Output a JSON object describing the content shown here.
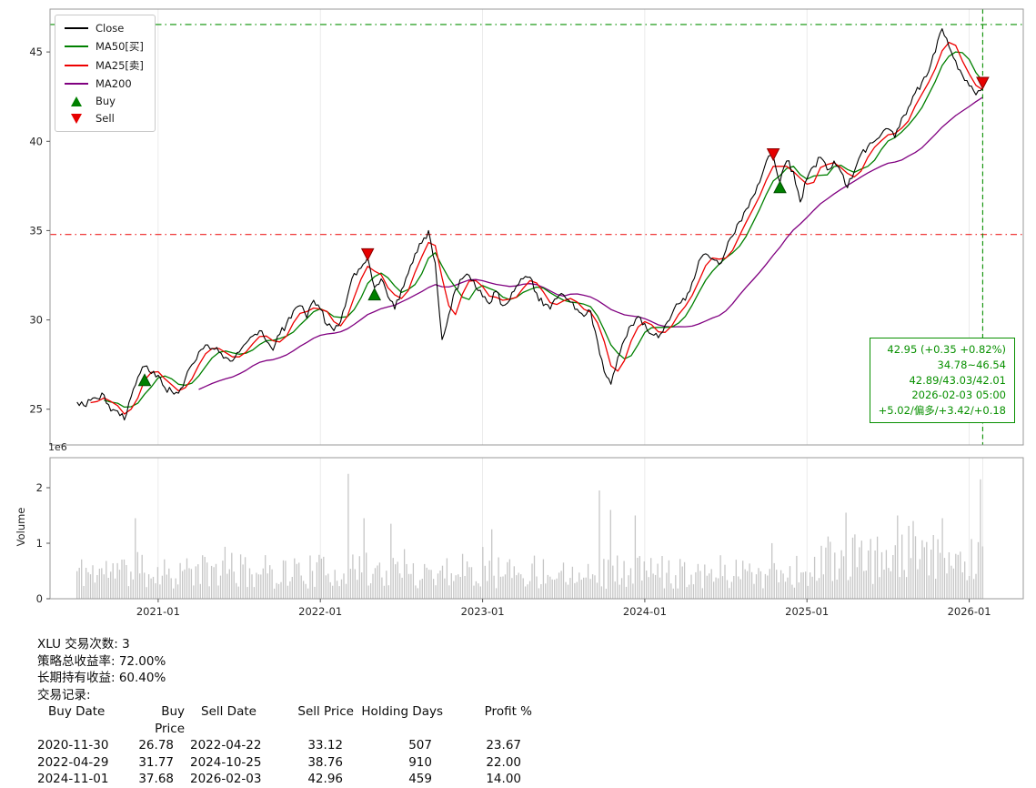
{
  "symbol": "XLU",
  "colors": {
    "close": "#000000",
    "ma25": "#ee0000",
    "ma50": "#008000",
    "ma200": "#800080",
    "buy": "#008000",
    "sell": "#e60000",
    "annotation_green": "#089000",
    "volume_bar": "#c6c6c6"
  },
  "legend": {
    "items": [
      {
        "label": "Close",
        "type": "line",
        "color": "#000000"
      },
      {
        "label": "MA50[买]",
        "type": "line",
        "color": "#008000"
      },
      {
        "label": "MA25[卖]",
        "type": "line",
        "color": "#ee0000"
      },
      {
        "label": "MA200",
        "type": "line",
        "color": "#800080"
      },
      {
        "label": "Buy",
        "type": "marker-up",
        "color": "#008000"
      },
      {
        "label": "Sell",
        "type": "marker-down",
        "color": "#e60000"
      }
    ]
  },
  "chart_data": {
    "type": "line",
    "x_axis_type": "date",
    "x_start": "2020-07",
    "x_step_months": 0.5,
    "x_ticks": [
      {
        "i": 12,
        "label": "2021-01"
      },
      {
        "i": 36,
        "label": "2022-01"
      },
      {
        "i": 60,
        "label": "2023-01"
      },
      {
        "i": 84,
        "label": "2024-01"
      },
      {
        "i": 108,
        "label": "2025-01"
      },
      {
        "i": 132,
        "label": "2026-01"
      }
    ],
    "price": {
      "ylim": [
        23.0,
        47.4
      ],
      "yticks": [
        25,
        30,
        35,
        40,
        45
      ],
      "close": [
        25.4,
        25.2,
        25.5,
        25.6,
        25.8,
        24.9,
        24.9,
        24.4,
        25.7,
        26.8,
        27.4,
        27.0,
        26.9,
        26.2,
        26.0,
        25.9,
        26.7,
        27.5,
        28.2,
        28.6,
        28.4,
        28.2,
        27.9,
        27.7,
        28.2,
        28.7,
        29.1,
        29.4,
        28.8,
        28.3,
        29.2,
        29.8,
        30.5,
        30.8,
        30.1,
        31.1,
        30.6,
        29.7,
        29.4,
        29.9,
        31.3,
        32.6,
        32.9,
        33.5,
        31.8,
        32.3,
        31.3,
        30.6,
        31.7,
        32.6,
        33.7,
        34.3,
        35.0,
        33.2,
        28.9,
        30.3,
        31.7,
        32.3,
        32.5,
        31.8,
        31.3,
        30.9,
        31.6,
        30.8,
        31.1,
        31.9,
        32.3,
        32.4,
        31.5,
        30.8,
        30.6,
        31.2,
        31.4,
        31.0,
        30.6,
        30.2,
        30.5,
        28.8,
        27.1,
        26.4,
        27.9,
        28.9,
        29.7,
        30.2,
        29.8,
        29.2,
        29.0,
        29.7,
        30.3,
        30.9,
        31.1,
        32.1,
        33.3,
        33.7,
        33.4,
        33.1,
        33.9,
        34.7,
        35.5,
        36.2,
        36.9,
        37.7,
        38.9,
        39.2,
        37.7,
        38.9,
        38.3,
        36.6,
        37.9,
        38.6,
        39.1,
        38.4,
        38.9,
        38.3,
        37.4,
        38.3,
        39.3,
        39.7,
        40.0,
        40.4,
        40.7,
        40.2,
        41.3,
        41.9,
        42.7,
        43.3,
        43.9,
        45.0,
        46.3,
        45.3,
        44.5,
        43.7,
        43.1,
        42.6,
        42.95
      ],
      "ma": [
        {
          "name": "MA200",
          "window": 19,
          "color": "#800080"
        },
        {
          "name": "MA50[买]",
          "window": 5,
          "color": "#008000"
        },
        {
          "name": "MA25[卖]",
          "window": 3,
          "color": "#ee0000"
        }
      ],
      "hlines": [
        {
          "value": 46.54,
          "color": "#089000",
          "style": "dashdot"
        },
        {
          "value": 34.78,
          "color": "#ee2222",
          "style": "dashdot"
        }
      ],
      "vline": {
        "i": 134,
        "label": "2026-02-03",
        "color": "#089000",
        "style": "dashed"
      },
      "buy_markers": [
        {
          "i": 10,
          "value": 26.6,
          "date": "2020-11-30",
          "price": 26.78
        },
        {
          "i": 44,
          "value": 31.4,
          "date": "2022-04-29",
          "price": 31.77
        },
        {
          "i": 104,
          "value": 37.4,
          "date": "2024-11-01",
          "price": 37.68
        }
      ],
      "sell_markers": [
        {
          "i": 43,
          "value": 33.7,
          "date": "2022-04-22",
          "price": 33.12
        },
        {
          "i": 103,
          "value": 39.3,
          "date": "2024-10-25",
          "price": 38.76
        },
        {
          "i": 134,
          "value": 43.3,
          "date": "2026-02-03",
          "price": 42.96
        }
      ]
    },
    "volume": {
      "ylabel": "Volume",
      "scale_label": "1e6",
      "yticks": [
        0,
        1,
        2
      ],
      "ylim": [
        0,
        2.54
      ],
      "bars": 405,
      "seed": 11,
      "base_range": [
        0.18,
        0.8
      ],
      "late_boost_from": 0.82,
      "late_boost": 1.45,
      "spikes": [
        {
          "pos": 0.065,
          "v": 1.45
        },
        {
          "pos": 0.3,
          "v": 2.25
        },
        {
          "pos": 0.318,
          "v": 1.45
        },
        {
          "pos": 0.347,
          "v": 1.35
        },
        {
          "pos": 0.457,
          "v": 1.25
        },
        {
          "pos": 0.577,
          "v": 1.95
        },
        {
          "pos": 0.589,
          "v": 1.6
        },
        {
          "pos": 0.617,
          "v": 1.5
        },
        {
          "pos": 0.849,
          "v": 1.55
        },
        {
          "pos": 0.905,
          "v": 1.5
        },
        {
          "pos": 0.924,
          "v": 1.4
        },
        {
          "pos": 0.955,
          "v": 1.45
        },
        {
          "pos": 0.998,
          "v": 2.15
        }
      ]
    },
    "annotation": {
      "lines": [
        "42.95 (+0.35 +0.82%)",
        "34.78~46.54",
        "42.89/43.03/42.01",
        "2026-02-03 05:00",
        "+5.02/偏多/+3.42/+0.18"
      ],
      "color": "#089000"
    }
  },
  "summary": {
    "line1": "XLU 交易次数: 3",
    "line2": "策略总收益率: 72.00%",
    "line3": "长期持有收益: 60.40%",
    "line4": "交易记录:"
  },
  "trades": {
    "headers": [
      "Buy Date",
      "Buy Price",
      "Sell Date",
      "Sell Price",
      "Holding Days",
      "Profit %"
    ],
    "rows": [
      {
        "buy_date": "2020-11-30",
        "buy_price": "26.78",
        "sell_date": "2022-04-22",
        "sell_price": "33.12",
        "holding_days": "507",
        "profit_pct": "23.67"
      },
      {
        "buy_date": "2022-04-29",
        "buy_price": "31.77",
        "sell_date": "2024-10-25",
        "sell_price": "38.76",
        "holding_days": "910",
        "profit_pct": "22.00"
      },
      {
        "buy_date": "2024-11-01",
        "buy_price": "37.68",
        "sell_date": "2026-02-03",
        "sell_price": "42.96",
        "holding_days": "459",
        "profit_pct": "14.00"
      }
    ]
  }
}
